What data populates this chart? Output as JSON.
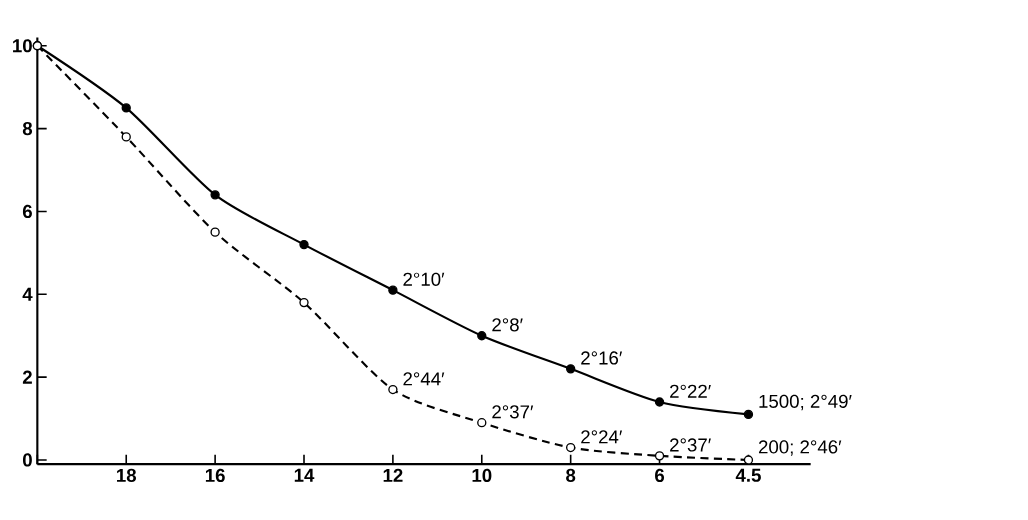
{
  "chart_data": {
    "type": "line",
    "categories": [
      null,
      "18",
      "16",
      "14",
      "12",
      "10",
      "8",
      "6",
      "4.5"
    ],
    "series": [
      {
        "color": "#000000",
        "line_style": "solid",
        "marker": "circle",
        "values": [
          10,
          8.5,
          6.4,
          5.2,
          4.1,
          3.0,
          2.2,
          1.4,
          1.1
        ]
      },
      {
        "color": "#000000",
        "line_style": "dashed",
        "marker": "circle",
        "values": [
          10,
          7.8,
          5.5,
          3.8,
          1.7,
          0.9,
          0.3,
          0.1,
          0.0
        ]
      }
    ],
    "ylim": [
      -0.1,
      10.2
    ],
    "yticks": [
      0,
      2,
      4,
      6,
      8,
      10
    ],
    "grid": false,
    "annotations": [
      {
        "text": "2°10′",
        "x": "12",
        "y": 4.1
      },
      {
        "text": "2°8′",
        "x": "10",
        "y": 3.0
      },
      {
        "text": "2°16′",
        "x": "8",
        "y": 2.2
      },
      {
        "text": "2°22′",
        "x": "6",
        "y": 1.4
      },
      {
        "text": "1500; 2°49′",
        "x": "4.5",
        "y": 1.1
      },
      {
        "text": "2°44′",
        "x": "12",
        "y": 1.7
      },
      {
        "text": "2°37′",
        "x": "10",
        "y": 0.9
      },
      {
        "text": "2°24′",
        "x": "8",
        "y": 0.3
      },
      {
        "text": "2°37′",
        "x": "6",
        "y": 0.1
      },
      {
        "text": "200; 2°46′",
        "x": "4.5",
        "y": 0.0
      }
    ]
  }
}
